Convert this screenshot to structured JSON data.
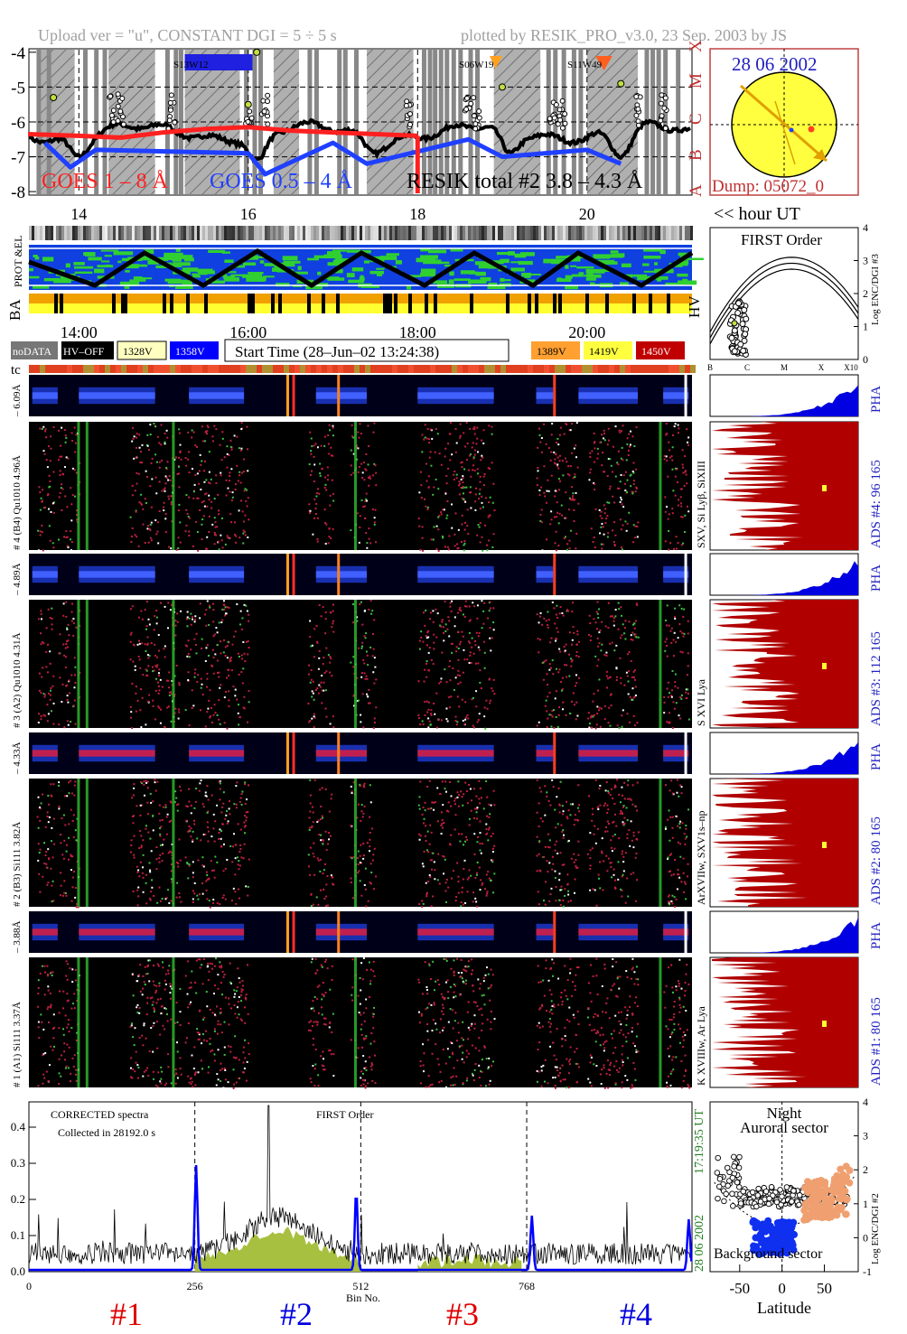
{
  "header": {
    "left": "Upload ver = \"u\", CONSTANT  DGI =   5 ÷   5 s",
    "right": "plotted by RESIK_PRO_v3.0, 23 Sep. 2003 by JS"
  },
  "goes_panel": {
    "y_ticks": [
      "-4",
      "-5",
      "-6",
      "-7",
      "-8"
    ],
    "class_letters": [
      "X",
      "M",
      "C",
      "B",
      "A"
    ],
    "goes_long": "GOES 1 – 8 Å",
    "goes_short": "GOES 0.5 – 4 Å",
    "resik_total": "RESIK total #2  3.8 – 4.3 Å",
    "regions": [
      "S13W12",
      "S06W19",
      "S11W49"
    ],
    "colors": {
      "long": "#ff2020",
      "short": "#2040ff",
      "resik": "#000000"
    }
  },
  "sun": {
    "date": "28 06 2002",
    "dump": "Dump: 05072_0"
  },
  "hour_axis": {
    "labels": [
      "14",
      "16",
      "18",
      "20"
    ],
    "unit": "<< hour UT"
  },
  "time_axis": {
    "labels": [
      "14:00",
      "16:00",
      "18:00",
      "20:00"
    ]
  },
  "row_labels": {
    "prot": "PROT &EL",
    "ba": "BA",
    "hv": "HV",
    "tc": "tc"
  },
  "first_order": {
    "title": "FIRST Order",
    "ylabel": "Log ENC/DGI #3",
    "y_ticks": [
      "0",
      "1",
      "2",
      "3",
      "4"
    ],
    "x_ticks": [
      "B",
      "C",
      "M",
      "X",
      "X10"
    ]
  },
  "legend": {
    "nodata": "noDATA",
    "hvoff": "HV–OFF",
    "v1328": "1328V",
    "v1358": "1358V",
    "start": "Start Time (28–Jun–02 13:24:38)",
    "v1389": "1389V",
    "v1419": "1419V",
    "v1450": "1450V",
    "colors": {
      "nodata": "#777777",
      "hvoff": "#000000",
      "v1328": "#ffffc0",
      "v1358": "#0000ff",
      "v1389": "#ffa030",
      "v1419": "#ffff40",
      "v1450": "#c00000"
    }
  },
  "channels": [
    {
      "pha_range": "– 6.09Å",
      "label": "# 4 (B4) Qu1010 4.96Å",
      "lines": "SXV, Si Lyβ, SiXIII",
      "ads": "ADS #4:   96 165",
      "pha": "PHA"
    },
    {
      "pha_range": "– 4.89Å",
      "label": "# 3 (A2) Qu1010  4.31Å",
      "lines": "S XVI Lya",
      "ads": "ADS #3:  112 165",
      "pha": "PHA"
    },
    {
      "pha_range": "– 4.33Å",
      "label": "# 2 (B3) Si111  3.82Å",
      "lines": "ArXVIIw, SXV1s–np",
      "ads": "ADS #2:   80 165",
      "pha": "PHA"
    },
    {
      "pha_range": "– 3.88Å",
      "label": "# 1 (A1) Si111  3.37Å",
      "lines": "K XVIIIw, Ar Lya",
      "ads": "ADS #1:   80 165",
      "pha": "PHA"
    }
  ],
  "spectra": {
    "note1": "CORRECTED spectra",
    "note2": "Collected in 28192.0 s",
    "order": "FIRST Order",
    "y_ticks": [
      "0.0",
      "0.1",
      "0.2",
      "0.3",
      "0.4"
    ],
    "x_ticks": [
      "0",
      "256",
      "512",
      "768"
    ],
    "xlabel": "Bin No.",
    "channels": [
      "#1",
      "#2",
      "#3",
      "#4"
    ],
    "channel_colors": [
      "#e00000",
      "#0000e0",
      "#e00000",
      "#0000e0"
    ],
    "time_stamp": "17:19:35 UT",
    "date_stamp": "28 06 2002"
  },
  "orbit": {
    "title1": "Night",
    "title2": "Auroral sector",
    "bottom": "Background sector",
    "xlabel": "Latitude",
    "ylabel": "Log ENC/DGI #2",
    "x_ticks": [
      "-50",
      "0",
      "50"
    ],
    "y_ticks": [
      "-1",
      "0",
      "1",
      "2",
      "3",
      "4"
    ]
  },
  "chart_data": {
    "type": "line",
    "title": "GOES 1 – 8 Å",
    "xlabel": "hour UT",
    "ylabel": "",
    "x_ticks": [
      14,
      16,
      18,
      20
    ],
    "y_ticks": [
      -4,
      -5,
      -6,
      -7,
      -8
    ],
    "ylim": [
      -8.1,
      -3.9
    ],
    "series": [
      {
        "name": "GOES 1 – 8 Å",
        "x": [
          13.4,
          14.0,
          14.5,
          15.0,
          15.5,
          16.0,
          16.5,
          17.0,
          17.5,
          18.0
        ],
        "values": [
          -6.35,
          -6.4,
          -6.45,
          -6.3,
          -6.2,
          -6.15,
          -6.25,
          -6.3,
          -6.35,
          -6.4
        ]
      },
      {
        "name": "GOES 0.5 – 4 Å",
        "x": [
          13.6,
          13.9,
          14.2,
          16.0,
          16.2,
          17.0,
          17.4,
          18.6,
          19.0,
          20.0,
          20.4
        ],
        "values": [
          -6.6,
          -7.3,
          -6.8,
          -6.9,
          -7.5,
          -6.6,
          -7.2,
          -6.5,
          -7.0,
          -6.8,
          -7.2
        ]
      }
    ]
  }
}
